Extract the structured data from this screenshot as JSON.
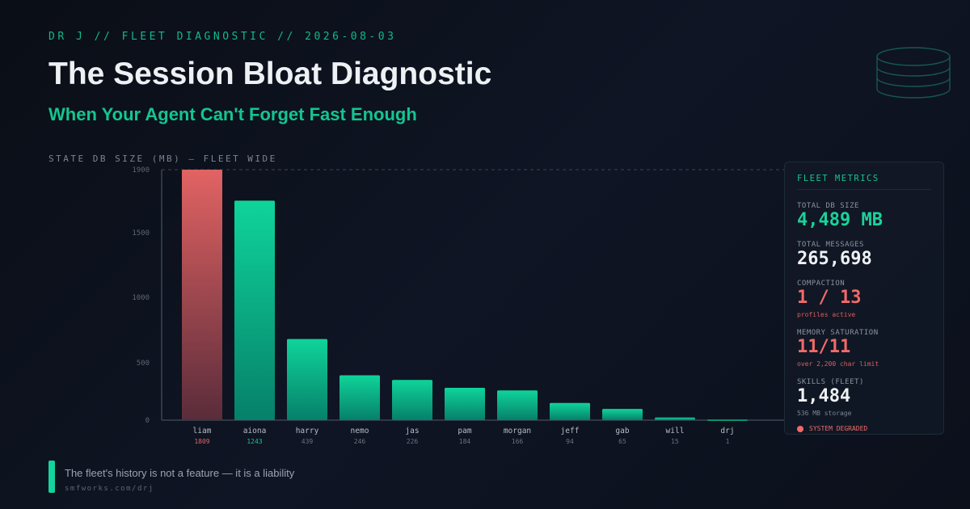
{
  "header": {
    "kicker": "DR J // FLEET DIAGNOSTIC // 2026-08-03",
    "title": "The Session Bloat Diagnostic",
    "subtitle": "When Your Agent Can't Forget Fast Enough"
  },
  "chart_label": "STATE DB SIZE (MB) — FLEET WIDE",
  "chart_data": {
    "type": "bar",
    "title": "STATE DB SIZE (MB) — FLEET WIDE",
    "categories": [
      "liam",
      "aiona",
      "harry",
      "nemo",
      "jas",
      "pam",
      "morgan",
      "jeff",
      "gab",
      "will",
      "drj"
    ],
    "values": [
      1809,
      1243,
      439,
      246,
      226,
      184,
      166,
      94,
      65,
      15,
      1
    ],
    "bar_heights_as_axis_value": [
      1900,
      1665,
      615,
      340,
      305,
      245,
      225,
      130,
      85,
      20,
      3
    ],
    "ylim": [
      0,
      1900
    ],
    "yticks": [
      "1900",
      "1500",
      "1000",
      "500",
      "0"
    ],
    "highlight_color": "#e06464",
    "bar_color": "#12c990",
    "grid": false
  },
  "panel": {
    "title": "FLEET METRICS",
    "metrics": [
      {
        "label": "TOTAL DB SIZE",
        "value": "4,489 MB",
        "sub": ""
      },
      {
        "label": "TOTAL MESSAGES",
        "value": "265,698",
        "sub": ""
      },
      {
        "label": "COMPACTION",
        "value": "1 / 13",
        "sub": "profiles active"
      },
      {
        "label": "MEMORY SATURATION",
        "value": "11/11",
        "sub": "over 2,200 char limit"
      },
      {
        "label": "SKILLS (FLEET)",
        "value": "1,484",
        "sub": "536 MB storage"
      }
    ],
    "status": "SYSTEM DEGRADED"
  },
  "footer": {
    "text": "The fleet's history is not a feature — it is a liability",
    "url": "smfworks.com/drj"
  },
  "colors": {
    "accent": "#14c58f",
    "danger": "#f06a6a",
    "background": "#0d1220"
  }
}
